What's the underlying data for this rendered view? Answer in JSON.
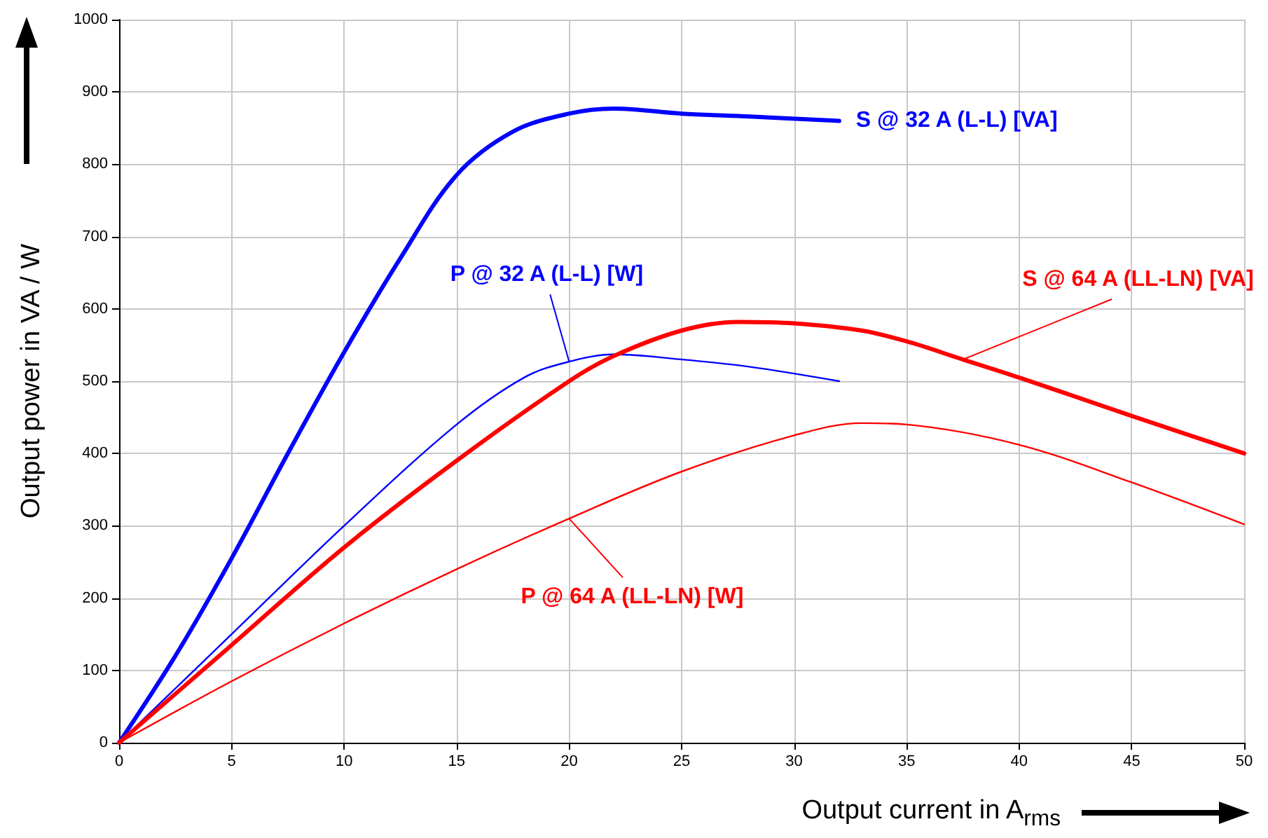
{
  "chart_data": {
    "type": "line",
    "xlabel": "Output current in A$_{rms}$",
    "ylabel": "Output power in VA / W",
    "xlim": [
      0,
      50
    ],
    "xticks": [
      0,
      5,
      10,
      15,
      20,
      25,
      30,
      35,
      40,
      45,
      50
    ],
    "ylim": [
      0,
      1000
    ],
    "yticks": [
      0,
      100,
      200,
      300,
      400,
      500,
      600,
      700,
      800,
      900,
      1000
    ],
    "grid": true,
    "legend": false,
    "marker": "none",
    "line_style": "solid",
    "series": [
      {
        "name": "S @ 32 A (L-L) [VA]",
        "color": "#0000ff",
        "x": [
          0,
          2.5,
          5,
          7.5,
          10,
          12.5,
          15,
          17.5,
          20,
          22,
          25,
          28,
          32
        ],
        "values": [
          0,
          120,
          255,
          400,
          540,
          670,
          785,
          845,
          870,
          877,
          870,
          866,
          860
        ]
      },
      {
        "name": "P @ 32 A (L-L) [W]",
        "color": "#0000ff",
        "x": [
          0,
          5,
          10,
          15,
          18,
          20,
          22,
          25,
          28,
          32
        ],
        "values": [
          0,
          150,
          300,
          440,
          505,
          527,
          537,
          530,
          520,
          500
        ]
      },
      {
        "name": "S @ 64 A (LL-LN) [VA]",
        "color": "#ff0000",
        "x": [
          0,
          5,
          10,
          15,
          20,
          22,
          25,
          27.5,
          30,
          33,
          35,
          37.5,
          40,
          45,
          50
        ],
        "values": [
          0,
          135,
          270,
          390,
          500,
          535,
          570,
          582,
          580,
          570,
          555,
          530,
          505,
          452,
          400
        ]
      },
      {
        "name": "P @ 64 A (LL-LN) [W]",
        "color": "#ff0000",
        "x": [
          0,
          5,
          10,
          15,
          20,
          25,
          30,
          33,
          35,
          40,
          45,
          50
        ],
        "values": [
          0,
          85,
          165,
          240,
          310,
          375,
          425,
          442,
          440,
          412,
          360,
          302
        ]
      }
    ]
  }
}
